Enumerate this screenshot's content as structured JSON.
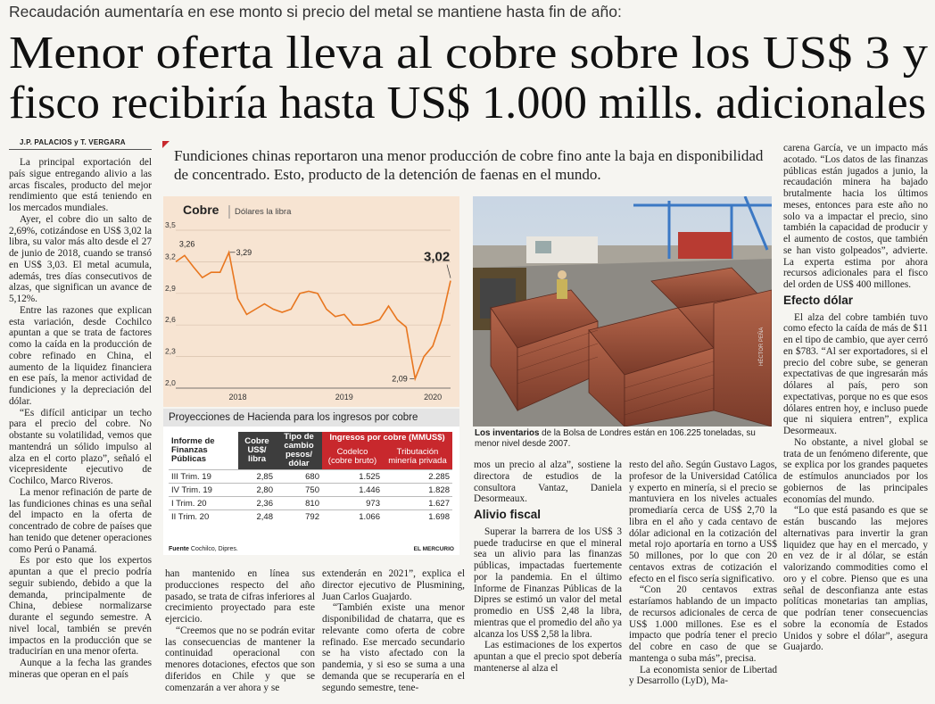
{
  "kicker": "Recaudación aumentaría en ese monto si precio del metal se mantiene hasta fin de año:",
  "headline": [
    "Menor oferta lleva al cobre sobre los US$ 3 y",
    "fisco recibiría hasta US$ 1.000 mills. adicionales"
  ],
  "byline": "J.P. PALACIOS y T. VERGARA",
  "deck": "Fundiciones chinas reportaron una menor producción de cobre fino ante la baja en disponibilidad de concentrado. Esto, producto de la detención de faenas en el mundo.",
  "chart": {
    "type": "line",
    "title": "Cobre",
    "subtitle": "Dólares la libra",
    "categories": [
      null,
      null,
      null,
      null,
      null,
      null,
      null,
      "2018",
      null,
      null,
      null,
      null,
      null,
      null,
      null,
      null,
      null,
      null,
      null,
      "2019",
      null,
      null,
      null,
      null,
      null,
      null,
      null,
      null,
      null,
      "2020",
      null,
      null
    ],
    "values": [
      3.2,
      3.26,
      3.15,
      3.05,
      3.1,
      3.1,
      3.29,
      2.85,
      2.7,
      2.75,
      2.8,
      2.75,
      2.72,
      2.75,
      2.9,
      2.92,
      2.9,
      2.75,
      2.68,
      2.7,
      2.6,
      2.6,
      2.62,
      2.65,
      2.78,
      2.65,
      2.58,
      2.09,
      2.3,
      2.4,
      2.65,
      3.02
    ],
    "value_labels": [
      null,
      "3,26",
      null,
      null,
      null,
      null,
      "3,29",
      null,
      null,
      null,
      null,
      null,
      null,
      null,
      null,
      null,
      null,
      null,
      null,
      null,
      null,
      null,
      null,
      null,
      null,
      null,
      null,
      "2,09",
      null,
      null,
      null,
      "3,02"
    ],
    "color": "#e8761f",
    "ylim": [
      2.0,
      3.5
    ],
    "yticks": [
      {
        "value": 2.0,
        "label": "2,0"
      },
      {
        "value": 2.3,
        "label": "2,3"
      },
      {
        "value": 2.6,
        "label": "2,6"
      },
      {
        "value": 2.9,
        "label": "2,9"
      },
      {
        "value": 3.2,
        "label": "3,2"
      },
      {
        "value": 3.5,
        "label": "3,5"
      }
    ],
    "grid": true
  },
  "table": {
    "title": "Proyecciones de Hacienda para los ingresos por cobre",
    "header": [
      "Informe de Finanzas Públicas",
      "Cobre US$/ libra",
      "Tipo de cambio pesos/ dólar",
      "Ingresos por cobre (MMUS$)",
      "Codelco (cobre bruto)",
      "Tributación minería privada"
    ],
    "rows": [
      [
        "III Trim. 19",
        "2,85",
        "680",
        "1.525",
        "2.285"
      ],
      [
        "IV Trim. 19",
        "2,80",
        "750",
        "1.446",
        "1.828"
      ],
      [
        "I Trim. 20",
        "2,36",
        "810",
        "973",
        "1.627"
      ],
      [
        "II Trim. 20",
        "2,48",
        "792",
        "1.066",
        "1.698"
      ]
    ],
    "source_label": "Fuente",
    "source": "Cochilco, Dipres.",
    "credit": "EL MERCURIO"
  },
  "photo": {
    "caption_bold": "Los inventarios",
    "caption": "de la Bolsa de Londres están en 106.225 toneladas, su menor nivel desde 2007.",
    "credit": "HÉCTOR PEÑA"
  },
  "columns": [
    {
      "paragraphs": [
        "La principal exportación del país sigue entregando alivio a las arcas fiscales, producto del mejor rendimiento que está teniendo en los mercados mundiales.",
        "Ayer, el cobre dio un salto de 2,69%, cotizándose en US$ 3,02 la libra, su valor más alto desde el 27 de junio de 2018, cuando se transó en US$ 3,03. El metal acumula, además, tres días consecutivos de alzas, que significan un avance de 5,12%.",
        "Entre las razones que explican esta variación, desde Cochilco apuntan a que se trata de factores como la caída en la producción de cobre refinado en China, el aumento de la liquidez financiera en ese país, la menor actividad de fundiciones y la depreciación del dólar.",
        "“Es difícil anticipar un techo para el precio del cobre. No obstante su volatilidad, vemos que mantendrá un sólido impulso al alza en el corto plazo”, señaló el vicepresidente ejecutivo de Cochilco, Marco Riveros.",
        "La menor refinación de parte de las fundiciones chinas es una señal del impacto en la oferta de concentrado de cobre de países que han tenido que detener operaciones como Perú o Panamá.",
        "Es por esto que los expertos apuntan a que el precio podría seguir subiendo, debido a que la demanda, principalmente de China, debiese normalizarse durante el segundo semestre. A nivel local, también se prevén impactos en la producción que se traducirían en una menor oferta.",
        "Aunque a la fecha las grandes mineras que operan en el país"
      ]
    },
    {
      "paragraphs": [
        "han mantenido en línea sus producciones respecto del año pasado, se trata de cifras inferiores al crecimiento proyectado para este ejercicio.",
        "“Creemos que no se podrán evitar las consecuencias de mantener la continuidad operacional con menores dotaciones, efectos que son diferidos en Chile y que se comenzarán a ver ahora y se"
      ]
    },
    {
      "paragraphs": [
        "extenderán en 2021”, explica el director ejecutivo de Plusmining, Juan Carlos Guajardo.",
        "“También existe una menor disponibilidad de chatarra, que es relevante como oferta de cobre refinado. Ese mercado secundario se ha visto afectado con la pandemia, y si eso se suma a una demanda que se recuperaría en el segundo semestre, tene-"
      ]
    },
    {
      "lead": [
        "mos un precio al alza”, sostiene la directora de estudios de la consultora Vantaz, Daniela Desormeaux."
      ],
      "heading": "Alivio fiscal",
      "paragraphs": [
        "Superar la barrera de los US$ 3 puede traducirse en que el mineral sea un alivio para las finanzas públicas, impactadas fuertemente por la pandemia. En el último Informe de Finanzas Públicas de la Dipres se estimó un valor del metal promedio en US$ 2,48 la libra, mientras que el promedio del año ya alcanza los US$ 2,58 la libra.",
        "Las estimaciones de los expertos apuntan a que el precio spot debería mantenerse al alza el"
      ]
    },
    {
      "paragraphs": [
        "resto del año. Según Gustavo Lagos, profesor de la Universidad Católica y experto en minería, si el precio se mantuviera en los niveles actuales promediaría cerca de US$ 2,70 la libra en el año y cada centavo de dólar adicional en la cotización del metal rojo aportaría en torno a US$ 50 millones, por lo que con 20 centavos extras de cotización el efecto en el fisco sería significativo.",
        "“Con 20 centavos extras estaríamos hablando de un impacto de recursos adicionales de cerca de US$ 1.000 millones. Ese es el impacto que podría tener el precio del cobre en caso de que se mantenga o suba más”, precisa.",
        "La economista senior de Libertad y Desarrollo (LyD), Ma-"
      ]
    },
    {
      "lead": [
        "carena García, ve un impacto más acotado. “Los datos de las finanzas públicas están jugados a junio, la recaudación minera ha bajado brutalmente hacia los últimos meses, entonces para este año no solo va a impactar el precio, sino también la capacidad de producir y el aumento de costos, que también se han visto golpeados”, advierte. La experta estima por ahora recursos adicionales para el fisco del orden de US$ 400 millones."
      ],
      "heading": "Efecto dólar",
      "paragraphs": [
        "El alza del cobre también tuvo como efecto la caída de más de $11 en el tipo de cambio, que ayer cerró en $783. “Al ser exportadores, si el precio del cobre sube, se generan expectativas de que ingresarán más dólares al país, pero son expectativas, porque no es que esos dólares entren hoy, e incluso puede que ni siquiera entren”, explica Desormeaux.",
        "No obstante, a nivel global se trata de un fenómeno diferente, que se explica por los grandes paquetes de estímulos anunciados por los gobiernos de las principales economías del mundo.",
        "“Lo que está pasando es que se están buscando las mejores alternativas para invertir la gran liquidez que hay en el mercado, y en vez de ir al dólar, se están valorizando commodities como el oro y el cobre. Pienso que es una señal de desconfianza ante estas políticas monetarias tan amplias, que podrían tener consecuencias sobre la economía de Estados Unidos y sobre el dólar”, asegura Guajardo."
      ]
    }
  ]
}
